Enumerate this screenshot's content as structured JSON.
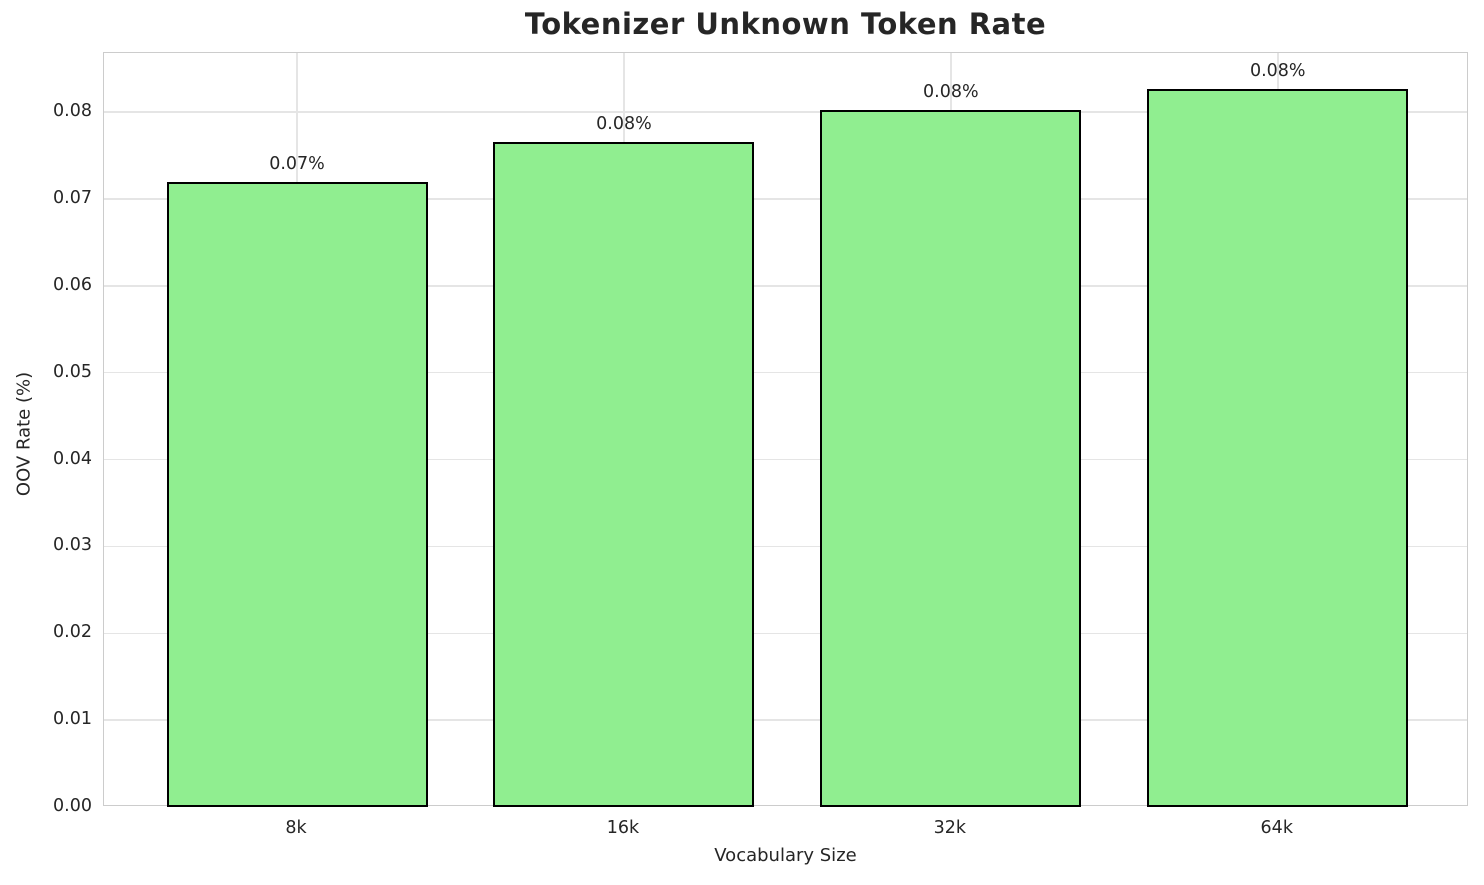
{
  "page": {
    "title": "Tokenizer Unknown Token Rate"
  },
  "chart_data": {
    "type": "bar",
    "title": "Tokenizer Unknown Token Rate",
    "xlabel": "Vocabulary Size",
    "ylabel": "OOV Rate (%)",
    "categories": [
      "8k",
      "16k",
      "32k",
      "64k"
    ],
    "values": [
      0.072,
      0.0766,
      0.0802,
      0.0826
    ],
    "bar_labels": [
      "0.07%",
      "0.08%",
      "0.08%",
      "0.08%"
    ],
    "yticks": [
      0,
      0.01,
      0.02,
      0.03,
      0.04,
      0.05,
      0.06,
      0.07,
      0.08
    ],
    "ytick_labels": [
      "0.00",
      "0.01",
      "0.02",
      "0.03",
      "0.04",
      "0.05",
      "0.06",
      "0.07",
      "0.08"
    ],
    "ylim": [
      0,
      0.0868
    ],
    "grid": true,
    "legend_position": "none",
    "colors": {
      "bar_fill": "#90EE90",
      "bar_edge": "#000000",
      "grid_line": "#e5e5e5",
      "axes_border": "#cccccc",
      "text": "#262626",
      "background": "#ffffff"
    }
  }
}
